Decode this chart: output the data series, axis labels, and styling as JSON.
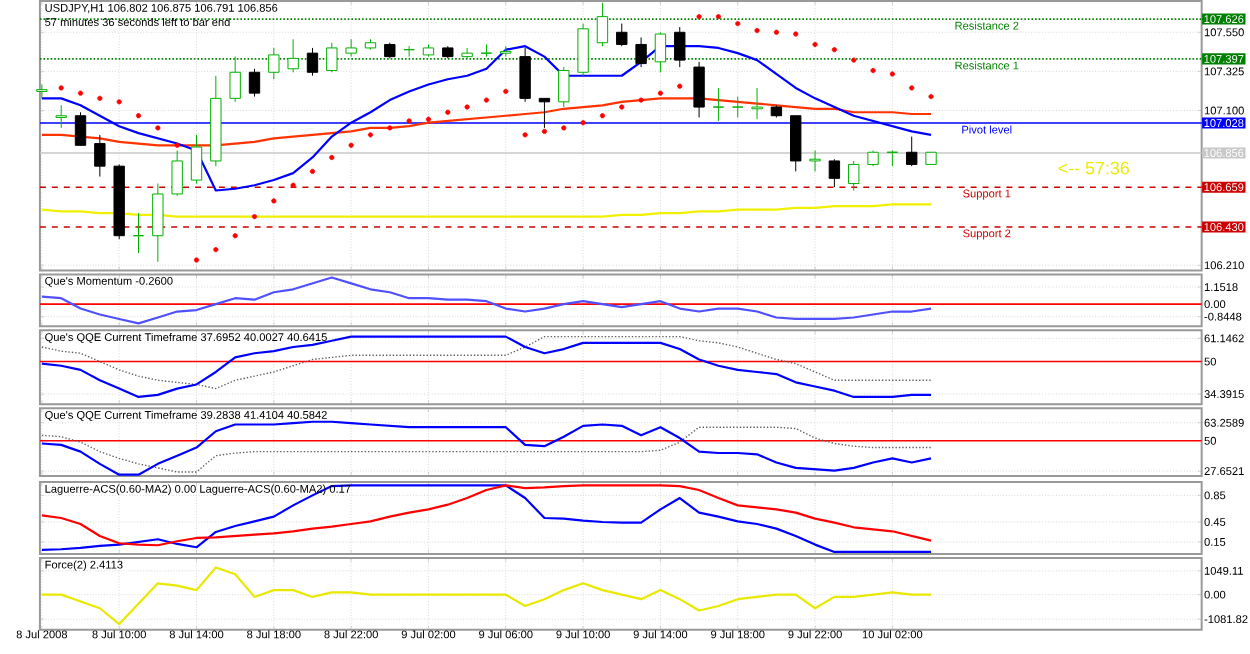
{
  "chart_data": [
    {
      "type": "candlestick",
      "title": "USDJPY,H1  106.802 106.875 106.791 106.856",
      "subtitle": "57 minutes 36 seconds left to bar end",
      "grid": true,
      "tick_labels": "y",
      "x": [
        "2008-07-08T06:00",
        "2008-07-08T07:00",
        "2008-07-08T08:00",
        "2008-07-08T09:00",
        "2008-07-08T10:00",
        "2008-07-08T11:00",
        "2008-07-08T12:00",
        "2008-07-08T13:00",
        "2008-07-08T14:00",
        "2008-07-08T15:00",
        "2008-07-08T16:00",
        "2008-07-08T17:00",
        "2008-07-08T18:00",
        "2008-07-08T19:00",
        "2008-07-08T20:00",
        "2008-07-08T21:00",
        "2008-07-08T22:00",
        "2008-07-08T23:00",
        "2008-07-09T00:00",
        "2008-07-09T01:00",
        "2008-07-09T02:00",
        "2008-07-09T03:00",
        "2008-07-09T04:00",
        "2008-07-09T05:00",
        "2008-07-09T06:00",
        "2008-07-09T07:00",
        "2008-07-09T08:00",
        "2008-07-09T09:00",
        "2008-07-09T10:00",
        "2008-07-09T11:00",
        "2008-07-09T12:00",
        "2008-07-09T13:00",
        "2008-07-09T14:00",
        "2008-07-09T15:00",
        "2008-07-09T16:00",
        "2008-07-09T17:00",
        "2008-07-09T18:00",
        "2008-07-09T19:00",
        "2008-07-09T20:00",
        "2008-07-09T21:00",
        "2008-07-09T22:00",
        "2008-07-09T23:00",
        "2008-07-10T00:00",
        "2008-07-10T01:00",
        "2008-07-10T02:00",
        "2008-07-10T03:00",
        "2008-07-10T04:00"
      ],
      "xlim": [
        "2008-07-08T05:54",
        "2008-07-10T18:00"
      ],
      "xticks": [
        {
          "value": "2008-07-08T06:00",
          "label": null
        },
        {
          "value": "2008-07-08T10:00",
          "label": null
        },
        {
          "value": "2008-07-08T14:00",
          "label": null
        },
        {
          "value": "2008-07-08T18:00",
          "label": null
        },
        {
          "value": "2008-07-08T22:00",
          "label": null
        },
        {
          "value": "2008-07-09T02:00",
          "label": null
        },
        {
          "value": "2008-07-09T06:00",
          "label": null
        },
        {
          "value": "2008-07-09T10:00",
          "label": null
        },
        {
          "value": "2008-07-09T14:00",
          "label": null
        },
        {
          "value": "2008-07-09T18:00",
          "label": null
        },
        {
          "value": "2008-07-09T22:00",
          "label": null
        },
        {
          "value": "2008-07-10T02:00",
          "label": null
        }
      ],
      "ylim": [
        106.18,
        107.73
      ],
      "yticks": [
        {
          "value": 107.55,
          "label": "107.550"
        },
        {
          "value": 107.325,
          "label": "107.325"
        },
        {
          "value": 107.1,
          "label": "107.100"
        },
        {
          "value": 106.21,
          "label": "106.210"
        }
      ],
      "ohlc": [
        [
          107.21,
          107.25,
          107.17,
          107.22
        ],
        [
          107.06,
          107.13,
          107.0,
          107.07
        ],
        [
          107.07,
          107.09,
          106.9,
          106.9
        ],
        [
          106.91,
          106.96,
          106.72,
          106.78
        ],
        [
          106.78,
          106.79,
          106.36,
          106.38
        ],
        [
          106.38,
          106.51,
          106.28,
          106.38
        ],
        [
          106.38,
          106.68,
          106.23,
          106.62
        ],
        [
          106.62,
          106.87,
          106.61,
          106.81
        ],
        [
          106.7,
          106.96,
          106.68,
          106.89
        ],
        [
          106.81,
          107.3,
          106.78,
          107.17
        ],
        [
          107.17,
          107.41,
          107.15,
          107.32
        ],
        [
          107.32,
          107.34,
          107.18,
          107.2
        ],
        [
          107.32,
          107.46,
          107.28,
          107.42
        ],
        [
          107.34,
          107.51,
          107.32,
          107.4
        ],
        [
          107.43,
          107.46,
          107.3,
          107.32
        ],
        [
          107.33,
          107.49,
          107.32,
          107.46
        ],
        [
          107.43,
          107.51,
          107.41,
          107.46
        ],
        [
          107.46,
          107.51,
          107.45,
          107.49
        ],
        [
          107.48,
          107.49,
          107.4,
          107.41
        ],
        [
          107.45,
          107.47,
          107.41,
          107.45
        ],
        [
          107.42,
          107.48,
          107.41,
          107.46
        ],
        [
          107.46,
          107.47,
          107.4,
          107.41
        ],
        [
          107.41,
          107.46,
          107.4,
          107.43
        ],
        [
          107.43,
          107.48,
          107.41,
          107.43
        ],
        [
          107.43,
          107.47,
          107.41,
          107.44
        ],
        [
          107.41,
          107.46,
          107.15,
          107.17
        ],
        [
          107.17,
          107.17,
          107.0,
          107.15
        ],
        [
          107.15,
          107.35,
          107.12,
          107.33
        ],
        [
          107.32,
          107.6,
          107.3,
          107.57
        ],
        [
          107.49,
          107.72,
          107.47,
          107.64
        ],
        [
          107.55,
          107.6,
          107.47,
          107.48
        ],
        [
          107.48,
          107.52,
          107.35,
          107.37
        ],
        [
          107.38,
          107.55,
          107.32,
          107.54
        ],
        [
          107.55,
          107.58,
          107.35,
          107.39
        ],
        [
          107.35,
          107.38,
          107.06,
          107.12
        ],
        [
          107.12,
          107.23,
          107.04,
          107.12
        ],
        [
          107.12,
          107.18,
          107.06,
          107.12
        ],
        [
          107.11,
          107.23,
          107.05,
          107.12
        ],
        [
          107.12,
          107.13,
          107.06,
          107.07
        ],
        [
          107.07,
          107.07,
          106.75,
          106.81
        ],
        [
          106.81,
          106.87,
          106.75,
          106.82
        ],
        [
          106.81,
          106.82,
          106.66,
          106.71
        ],
        [
          106.68,
          106.81,
          106.64,
          106.79
        ],
        [
          106.79,
          106.87,
          106.78,
          106.86
        ],
        [
          106.86,
          106.87,
          106.78,
          106.86
        ],
        [
          106.86,
          106.95,
          106.78,
          106.79
        ],
        [
          106.79,
          106.86,
          106.79,
          106.86
        ]
      ],
      "colors": [
        "#00b000",
        "#00b000",
        "#000000",
        "#000000",
        "#000000",
        "#00b000",
        "#00b000",
        "#00b000",
        "#00b000",
        "#00b000",
        "#00b000",
        "#000000",
        "#00b000",
        "#00b000",
        "#000000",
        "#00b000",
        "#00b000",
        "#00b000",
        "#000000",
        "#00b000",
        "#00b000",
        "#000000",
        "#00b000",
        "#00b000",
        "#00b000",
        "#000000",
        "#000000",
        "#00b000",
        "#00b000",
        "#00b000",
        "#000000",
        "#000000",
        "#00b000",
        "#000000",
        "#000000",
        "#00b000",
        "#00b000",
        "#00b000",
        "#000000",
        "#000000",
        "#00b000",
        "#000000",
        "#00b000",
        "#00b000",
        "#00b000",
        "#000000",
        "#00b000"
      ],
      "series": [
        {
          "type": "line",
          "color": "#f0f000",
          "values": [
            106.53,
            106.52,
            106.52,
            106.51,
            106.51,
            106.5,
            106.5,
            106.49,
            106.49,
            106.49,
            106.49,
            106.49,
            106.49,
            106.49,
            106.49,
            106.49,
            106.49,
            106.49,
            106.49,
            106.49,
            106.49,
            106.49,
            106.49,
            106.49,
            106.49,
            106.49,
            106.49,
            106.49,
            106.49,
            106.49,
            106.5,
            106.5,
            106.51,
            106.51,
            106.52,
            106.52,
            106.53,
            106.53,
            106.53,
            106.54,
            106.54,
            106.55,
            106.55,
            106.55,
            106.56,
            106.56,
            106.56
          ]
        },
        {
          "type": "line",
          "color": "#ff3300",
          "values": [
            106.96,
            106.96,
            106.95,
            106.94,
            106.92,
            106.91,
            106.9,
            106.9,
            106.9,
            106.9,
            106.91,
            106.92,
            106.94,
            106.95,
            106.96,
            106.97,
            106.98,
            107.0,
            107.0,
            107.01,
            107.03,
            107.04,
            107.05,
            107.06,
            107.07,
            107.08,
            107.09,
            107.11,
            107.12,
            107.13,
            107.15,
            107.16,
            107.17,
            107.17,
            107.17,
            107.16,
            107.15,
            107.14,
            107.13,
            107.12,
            107.11,
            107.11,
            107.09,
            107.09,
            107.09,
            107.08,
            107.08
          ]
        },
        {
          "type": "line",
          "color": "#0000ff",
          "values": [
            107.17,
            107.17,
            107.13,
            107.07,
            107.01,
            106.97,
            106.94,
            106.91,
            106.87,
            106.64,
            106.65,
            106.67,
            106.7,
            106.74,
            106.83,
            106.95,
            107.03,
            107.09,
            107.16,
            107.21,
            107.25,
            107.28,
            107.3,
            107.34,
            107.45,
            107.47,
            107.41,
            107.3,
            107.3,
            107.3,
            107.3,
            107.38,
            107.47,
            107.47,
            107.47,
            107.46,
            107.43,
            107.39,
            107.31,
            107.23,
            107.17,
            107.12,
            107.07,
            107.04,
            107.01,
            106.98,
            106.96
          ]
        },
        {
          "type": "scatter",
          "color": "#ff0000",
          "values": [
            null,
            107.23,
            107.2,
            107.17,
            107.15,
            107.07,
            107.0,
            106.9,
            106.24,
            106.3,
            106.38,
            106.49,
            106.58,
            106.67,
            106.75,
            106.83,
            106.9,
            106.96,
            107.0,
            107.04,
            107.05,
            107.09,
            107.12,
            107.16,
            107.21,
            106.96,
            106.98,
            107.0,
            107.03,
            107.07,
            107.12,
            107.16,
            107.2,
            107.24,
            107.64,
            107.64,
            107.6,
            107.56,
            107.55,
            107.54,
            107.48,
            107.45,
            107.39,
            107.33,
            107.31,
            107.23,
            107.18
          ]
        }
      ],
      "ref_lines": [
        {
          "axis": "y",
          "value": 107.626,
          "label": "Resistance 2",
          "color": "#008000",
          "line_style": "dotted"
        },
        {
          "axis": "y",
          "value": 107.397,
          "label": "Resistance 1",
          "color": "#008000",
          "line_style": "dotted"
        },
        {
          "axis": "y",
          "value": 107.028,
          "label": "Pivot level",
          "color": "#0000ff",
          "line_style": "solid"
        },
        {
          "axis": "y",
          "value": 106.856,
          "color": "#c8c8c8",
          "line_style": "solid"
        },
        {
          "axis": "y",
          "value": 106.659,
          "label": "Support 1",
          "color": "#cc0000",
          "line_style": "dashed"
        },
        {
          "axis": "y",
          "value": 106.43,
          "label": "Support 2",
          "color": "#cc0000",
          "line_style": "dashed"
        }
      ],
      "annotations": [
        "<-- 57:36",
        "107.626",
        "107.397",
        "107.028",
        "106.856",
        "106.659",
        "106.430"
      ]
    },
    {
      "type": "line",
      "title": "Que's Momentum  -0.2600",
      "grid": true,
      "tick_labels": "y",
      "x": [
        "2008-07-08T06:00",
        "2008-07-08T07:00",
        "2008-07-08T08:00",
        "2008-07-08T09:00",
        "2008-07-08T10:00",
        "2008-07-08T11:00",
        "2008-07-08T12:00",
        "2008-07-08T13:00",
        "2008-07-08T14:00",
        "2008-07-08T15:00",
        "2008-07-08T16:00",
        "2008-07-08T17:00",
        "2008-07-08T18:00",
        "2008-07-08T19:00",
        "2008-07-08T20:00",
        "2008-07-08T21:00",
        "2008-07-08T22:00",
        "2008-07-08T23:00",
        "2008-07-09T00:00",
        "2008-07-09T01:00",
        "2008-07-09T02:00",
        "2008-07-09T03:00",
        "2008-07-09T04:00",
        "2008-07-09T05:00",
        "2008-07-09T06:00",
        "2008-07-09T07:00",
        "2008-07-09T08:00",
        "2008-07-09T09:00",
        "2008-07-09T10:00",
        "2008-07-09T11:00",
        "2008-07-09T12:00",
        "2008-07-09T13:00",
        "2008-07-09T14:00",
        "2008-07-09T15:00",
        "2008-07-09T16:00",
        "2008-07-09T17:00",
        "2008-07-09T18:00",
        "2008-07-09T19:00",
        "2008-07-09T20:00",
        "2008-07-09T21:00",
        "2008-07-09T22:00",
        "2008-07-09T23:00",
        "2008-07-10T00:00",
        "2008-07-10T01:00",
        "2008-07-10T02:00",
        "2008-07-10T03:00",
        "2008-07-10T04:00"
      ],
      "xlim": [
        "2008-07-08T05:54",
        "2008-07-10T18:00"
      ],
      "xticks": [
        {
          "value": "2008-07-08T06:00",
          "label": null
        },
        {
          "value": "2008-07-08T10:00",
          "label": null
        },
        {
          "value": "2008-07-08T14:00",
          "label": null
        },
        {
          "value": "2008-07-08T18:00",
          "label": null
        },
        {
          "value": "2008-07-08T22:00",
          "label": null
        },
        {
          "value": "2008-07-09T02:00",
          "label": null
        },
        {
          "value": "2008-07-09T06:00",
          "label": null
        },
        {
          "value": "2008-07-09T10:00",
          "label": null
        },
        {
          "value": "2008-07-09T14:00",
          "label": null
        },
        {
          "value": "2008-07-09T18:00",
          "label": null
        },
        {
          "value": "2008-07-09T22:00",
          "label": null
        },
        {
          "value": "2008-07-10T02:00",
          "label": null
        }
      ],
      "ylim": [
        -1.5,
        2.0
      ],
      "yticks": [
        1.1518,
        {
          "value": 0,
          "label": "0.00"
        },
        -0.8448
      ],
      "ref_lines": [
        {
          "axis": "y",
          "value": 0,
          "color": "#ff0000",
          "line_style": "solid"
        }
      ],
      "series": [
        {
          "color": "#5050ff",
          "values": [
            0.5,
            0.4,
            -0.3,
            -0.7,
            -1.0,
            -1.3,
            -0.9,
            -0.5,
            -0.4,
            0,
            0.4,
            0.3,
            0.8,
            1.0,
            1.4,
            1.8,
            1.4,
            1.0,
            0.8,
            0.4,
            0.4,
            0.3,
            0.3,
            0.2,
            -0.3,
            -0.5,
            -0.3,
            0,
            0.2,
            0,
            -0.2,
            0,
            0.2,
            -0.3,
            -0.5,
            -0.3,
            -0.3,
            -0.5,
            -0.9,
            -1.0,
            -1.0,
            -1.0,
            -0.9,
            -0.7,
            -0.5,
            -0.5,
            -0.3
          ]
        }
      ]
    },
    {
      "type": "line",
      "title": "Que's QQE Current Timeframe 37.6952 40.0027 40.6415",
      "grid": true,
      "tick_labels": "y",
      "x": [
        "2008-07-08T06:00",
        "2008-07-08T07:00",
        "2008-07-08T08:00",
        "2008-07-08T09:00",
        "2008-07-08T10:00",
        "2008-07-08T11:00",
        "2008-07-08T12:00",
        "2008-07-08T13:00",
        "2008-07-08T14:00",
        "2008-07-08T15:00",
        "2008-07-08T16:00",
        "2008-07-08T17:00",
        "2008-07-08T18:00",
        "2008-07-08T19:00",
        "2008-07-08T20:00",
        "2008-07-08T21:00",
        "2008-07-08T22:00",
        "2008-07-08T23:00",
        "2008-07-09T00:00",
        "2008-07-09T01:00",
        "2008-07-09T02:00",
        "2008-07-09T03:00",
        "2008-07-09T04:00",
        "2008-07-09T05:00",
        "2008-07-09T06:00",
        "2008-07-09T07:00",
        "2008-07-09T08:00",
        "2008-07-09T09:00",
        "2008-07-09T10:00",
        "2008-07-09T11:00",
        "2008-07-09T12:00",
        "2008-07-09T13:00",
        "2008-07-09T14:00",
        "2008-07-09T15:00",
        "2008-07-09T16:00",
        "2008-07-09T17:00",
        "2008-07-09T18:00",
        "2008-07-09T19:00",
        "2008-07-09T20:00",
        "2008-07-09T21:00",
        "2008-07-09T22:00",
        "2008-07-09T23:00",
        "2008-07-10T00:00",
        "2008-07-10T01:00",
        "2008-07-10T02:00",
        "2008-07-10T03:00",
        "2008-07-10T04:00"
      ],
      "xlim": [
        "2008-07-08T05:54",
        "2008-07-10T18:00"
      ],
      "xticks": [
        {
          "value": "2008-07-08T06:00",
          "label": null
        },
        {
          "value": "2008-07-08T10:00",
          "label": null
        },
        {
          "value": "2008-07-08T14:00",
          "label": null
        },
        {
          "value": "2008-07-08T18:00",
          "label": null
        },
        {
          "value": "2008-07-08T22:00",
          "label": null
        },
        {
          "value": "2008-07-09T02:00",
          "label": null
        },
        {
          "value": "2008-07-09T06:00",
          "label": null
        },
        {
          "value": "2008-07-09T10:00",
          "label": null
        },
        {
          "value": "2008-07-09T14:00",
          "label": null
        },
        {
          "value": "2008-07-09T18:00",
          "label": null
        },
        {
          "value": "2008-07-09T22:00",
          "label": null
        },
        {
          "value": "2008-07-10T02:00",
          "label": null
        }
      ],
      "ylim": [
        29.5,
        65
      ],
      "yticks": [
        61.1462,
        50,
        34.3915
      ],
      "ref_lines": [
        {
          "axis": "y",
          "value": 50,
          "color": "#ff0000",
          "line_style": "solid"
        }
      ],
      "series": [
        {
          "color": "#606060",
          "line_style": "dotted",
          "values": [
            57,
            55,
            54,
            50,
            46,
            43,
            41,
            40,
            39,
            37,
            41,
            43,
            45,
            48,
            51,
            52,
            53,
            53,
            53,
            53,
            53,
            53,
            53,
            53,
            53,
            57,
            62,
            62,
            62,
            62,
            62,
            62,
            62,
            62,
            60,
            59,
            57,
            54,
            51,
            49,
            45,
            41,
            41,
            41,
            41,
            41,
            41
          ]
        },
        {
          "color": "#0000ff",
          "line_style": "solid",
          "values": [
            49,
            48,
            46,
            41,
            37,
            33,
            34,
            37,
            39,
            45,
            52,
            54,
            55,
            57,
            58,
            60,
            62,
            62,
            62,
            62,
            62,
            62,
            62,
            62,
            62,
            57,
            54,
            56,
            59,
            59,
            59,
            59,
            59,
            56,
            51,
            48,
            46,
            45,
            44,
            40,
            38,
            36,
            33,
            33,
            33,
            34,
            34
          ]
        }
      ]
    },
    {
      "type": "line",
      "title": "Que's QQE Current Timeframe 39.2838 41.4104 40.5842",
      "grid": true,
      "tick_labels": "y",
      "x": [
        "2008-07-08T06:00",
        "2008-07-08T07:00",
        "2008-07-08T08:00",
        "2008-07-08T09:00",
        "2008-07-08T10:00",
        "2008-07-08T11:00",
        "2008-07-08T12:00",
        "2008-07-08T13:00",
        "2008-07-08T14:00",
        "2008-07-08T15:00",
        "2008-07-08T16:00",
        "2008-07-08T17:00",
        "2008-07-08T18:00",
        "2008-07-08T19:00",
        "2008-07-08T20:00",
        "2008-07-08T21:00",
        "2008-07-08T22:00",
        "2008-07-08T23:00",
        "2008-07-09T00:00",
        "2008-07-09T01:00",
        "2008-07-09T02:00",
        "2008-07-09T03:00",
        "2008-07-09T04:00",
        "2008-07-09T05:00",
        "2008-07-09T06:00",
        "2008-07-09T07:00",
        "2008-07-09T08:00",
        "2008-07-09T09:00",
        "2008-07-09T10:00",
        "2008-07-09T11:00",
        "2008-07-09T12:00",
        "2008-07-09T13:00",
        "2008-07-09T14:00",
        "2008-07-09T15:00",
        "2008-07-09T16:00",
        "2008-07-09T17:00",
        "2008-07-09T18:00",
        "2008-07-09T19:00",
        "2008-07-09T20:00",
        "2008-07-09T21:00",
        "2008-07-09T22:00",
        "2008-07-09T23:00",
        "2008-07-10T00:00",
        "2008-07-10T01:00",
        "2008-07-10T02:00",
        "2008-07-10T03:00",
        "2008-07-10T04:00"
      ],
      "xlim": [
        "2008-07-08T05:54",
        "2008-07-10T18:00"
      ],
      "xticks": [
        {
          "value": "2008-07-08T06:00",
          "label": null
        },
        {
          "value": "2008-07-08T10:00",
          "label": null
        },
        {
          "value": "2008-07-08T14:00",
          "label": null
        },
        {
          "value": "2008-07-08T18:00",
          "label": null
        },
        {
          "value": "2008-07-08T22:00",
          "label": null
        },
        {
          "value": "2008-07-09T02:00",
          "label": null
        },
        {
          "value": "2008-07-09T06:00",
          "label": null
        },
        {
          "value": "2008-07-09T10:00",
          "label": null
        },
        {
          "value": "2008-07-09T14:00",
          "label": null
        },
        {
          "value": "2008-07-09T18:00",
          "label": null
        },
        {
          "value": "2008-07-09T22:00",
          "label": null
        },
        {
          "value": "2008-07-10T02:00",
          "label": null
        }
      ],
      "ylim": [
        24,
        74
      ],
      "yticks": [
        63.2589,
        50,
        27.6521
      ],
      "ref_lines": [
        {
          "axis": "y",
          "value": 50,
          "color": "#ff0000",
          "line_style": "solid"
        }
      ],
      "series": [
        {
          "color": "#606060",
          "line_style": "dotted",
          "values": [
            54,
            53,
            49,
            42,
            37,
            33,
            30,
            27,
            27,
            39,
            41,
            42,
            42,
            42,
            42,
            42,
            42,
            42,
            42,
            42,
            42,
            42,
            42,
            42,
            42,
            42,
            42,
            42,
            42,
            42,
            42,
            42,
            43,
            49,
            60,
            60,
            60,
            60,
            60,
            59,
            52,
            48,
            46,
            45,
            45,
            45,
            45
          ]
        },
        {
          "color": "#0000ff",
          "line_style": "solid",
          "values": [
            48,
            47,
            42,
            33,
            25,
            25,
            33,
            39,
            45,
            57,
            62,
            62,
            62,
            63,
            64,
            64,
            63,
            62,
            61,
            60,
            60,
            60,
            60,
            60,
            60,
            47,
            46,
            53,
            61,
            62,
            61,
            54,
            60,
            52,
            42,
            41,
            41,
            40,
            34,
            30,
            29,
            28,
            30,
            34,
            37,
            34,
            37
          ]
        }
      ]
    },
    {
      "type": "line",
      "title": "Laguerre-ACS(0.60-MA2) 0.00  Laguerre-ACS(0.60-MA2) 0.17",
      "grid": true,
      "tick_labels": "y",
      "x": [
        "2008-07-08T06:00",
        "2008-07-08T07:00",
        "2008-07-08T08:00",
        "2008-07-08T09:00",
        "2008-07-08T10:00",
        "2008-07-08T11:00",
        "2008-07-08T12:00",
        "2008-07-08T13:00",
        "2008-07-08T14:00",
        "2008-07-08T15:00",
        "2008-07-08T16:00",
        "2008-07-08T17:00",
        "2008-07-08T18:00",
        "2008-07-08T19:00",
        "2008-07-08T20:00",
        "2008-07-08T21:00",
        "2008-07-08T22:00",
        "2008-07-08T23:00",
        "2008-07-09T00:00",
        "2008-07-09T01:00",
        "2008-07-09T02:00",
        "2008-07-09T03:00",
        "2008-07-09T04:00",
        "2008-07-09T05:00",
        "2008-07-09T06:00",
        "2008-07-09T07:00",
        "2008-07-09T08:00",
        "2008-07-09T09:00",
        "2008-07-09T10:00",
        "2008-07-09T11:00",
        "2008-07-09T12:00",
        "2008-07-09T13:00",
        "2008-07-09T14:00",
        "2008-07-09T15:00",
        "2008-07-09T16:00",
        "2008-07-09T17:00",
        "2008-07-09T18:00",
        "2008-07-09T19:00",
        "2008-07-09T20:00",
        "2008-07-09T21:00",
        "2008-07-09T22:00",
        "2008-07-09T23:00",
        "2008-07-10T00:00",
        "2008-07-10T01:00",
        "2008-07-10T02:00",
        "2008-07-10T03:00",
        "2008-07-10T04:00"
      ],
      "xlim": [
        "2008-07-08T05:54",
        "2008-07-10T18:00"
      ],
      "xticks": [
        {
          "value": "2008-07-08T06:00",
          "label": null
        },
        {
          "value": "2008-07-08T10:00",
          "label": null
        },
        {
          "value": "2008-07-08T14:00",
          "label": null
        },
        {
          "value": "2008-07-08T18:00",
          "label": null
        },
        {
          "value": "2008-07-08T22:00",
          "label": null
        },
        {
          "value": "2008-07-09T02:00",
          "label": null
        },
        {
          "value": "2008-07-09T06:00",
          "label": null
        },
        {
          "value": "2008-07-09T10:00",
          "label": null
        },
        {
          "value": "2008-07-09T14:00",
          "label": null
        },
        {
          "value": "2008-07-09T18:00",
          "label": null
        },
        {
          "value": "2008-07-09T22:00",
          "label": null
        },
        {
          "value": "2008-07-10T02:00",
          "label": null
        }
      ],
      "ylim": [
        -0.03,
        1.05
      ],
      "yticks": [
        0.85,
        0.45,
        0.15
      ],
      "series": [
        {
          "color": "#0000ff",
          "values": [
            0.03,
            0.04,
            0.06,
            0.09,
            0.11,
            0.15,
            0.19,
            0.12,
            0.07,
            0.3,
            0.39,
            0.46,
            0.53,
            0.7,
            0.85,
            0.99,
            1.0,
            1.0,
            1.0,
            1.0,
            1.0,
            1.0,
            1.0,
            1.0,
            1.0,
            0.81,
            0.51,
            0.5,
            0.47,
            0.45,
            0.44,
            0.44,
            0.64,
            0.81,
            0.59,
            0.53,
            0.46,
            0.42,
            0.35,
            0.24,
            0.11,
            0,
            0,
            0,
            0,
            0,
            0
          ]
        },
        {
          "color": "#ff0000",
          "values": [
            0.55,
            0.51,
            0.42,
            0.24,
            0.13,
            0.11,
            0.1,
            0.16,
            0.21,
            0.22,
            0.24,
            0.26,
            0.28,
            0.31,
            0.35,
            0.38,
            0.42,
            0.46,
            0.53,
            0.59,
            0.64,
            0.71,
            0.81,
            0.93,
            1.0,
            0.96,
            0.97,
            0.99,
            1.0,
            1.0,
            1.0,
            1.0,
            1.0,
            0.99,
            0.93,
            0.81,
            0.7,
            0.67,
            0.64,
            0.59,
            0.5,
            0.44,
            0.37,
            0.34,
            0.31,
            0.24,
            0.17
          ]
        }
      ]
    },
    {
      "type": "line",
      "title": "Force(2) 2.4113",
      "grid": true,
      "x": [
        "2008-07-08T06:00",
        "2008-07-08T07:00",
        "2008-07-08T08:00",
        "2008-07-08T09:00",
        "2008-07-08T10:00",
        "2008-07-08T11:00",
        "2008-07-08T12:00",
        "2008-07-08T13:00",
        "2008-07-08T14:00",
        "2008-07-08T15:00",
        "2008-07-08T16:00",
        "2008-07-08T17:00",
        "2008-07-08T18:00",
        "2008-07-08T19:00",
        "2008-07-08T20:00",
        "2008-07-08T21:00",
        "2008-07-08T22:00",
        "2008-07-08T23:00",
        "2008-07-09T00:00",
        "2008-07-09T01:00",
        "2008-07-09T02:00",
        "2008-07-09T03:00",
        "2008-07-09T04:00",
        "2008-07-09T05:00",
        "2008-07-09T06:00",
        "2008-07-09T07:00",
        "2008-07-09T08:00",
        "2008-07-09T09:00",
        "2008-07-09T10:00",
        "2008-07-09T11:00",
        "2008-07-09T12:00",
        "2008-07-09T13:00",
        "2008-07-09T14:00",
        "2008-07-09T15:00",
        "2008-07-09T16:00",
        "2008-07-09T17:00",
        "2008-07-09T18:00",
        "2008-07-09T19:00",
        "2008-07-09T20:00",
        "2008-07-09T21:00",
        "2008-07-09T22:00",
        "2008-07-09T23:00",
        "2008-07-10T00:00",
        "2008-07-10T01:00",
        "2008-07-10T02:00",
        "2008-07-10T03:00",
        "2008-07-10T04:00"
      ],
      "xlim": [
        "2008-07-08T05:54",
        "2008-07-10T18:00"
      ],
      "xticks": [
        {
          "value": "2008-07-08T06:00",
          "label": "8 Jul 2008"
        },
        {
          "value": "2008-07-08T10:00",
          "label": "8 Jul 10:00"
        },
        {
          "value": "2008-07-08T14:00",
          "label": "8 Jul 14:00"
        },
        {
          "value": "2008-07-08T18:00",
          "label": "8 Jul 18:00"
        },
        {
          "value": "2008-07-08T22:00",
          "label": "8 Jul 22:00"
        },
        {
          "value": "2008-07-09T02:00",
          "label": "9 Jul 02:00"
        },
        {
          "value": "2008-07-09T06:00",
          "label": "9 Jul 06:00"
        },
        {
          "value": "2008-07-09T10:00",
          "label": "9 Jul 10:00"
        },
        {
          "value": "2008-07-09T14:00",
          "label": "9 Jul 14:00"
        },
        {
          "value": "2008-07-09T18:00",
          "label": "9 Jul 18:00"
        },
        {
          "value": "2008-07-09T22:00",
          "label": "9 Jul 22:00"
        },
        {
          "value": "2008-07-10T02:00",
          "label": "10 Jul 02:00"
        }
      ],
      "ylim": [
        -1550,
        1620
      ],
      "yticks": [
        1049.11,
        {
          "value": 0,
          "label": "0.00"
        },
        -1081.82
      ],
      "series": [
        {
          "color": "#e8e800",
          "values": [
            0,
            0,
            -300,
            -600,
            -1300,
            -400,
            500,
            400,
            200,
            1200,
            900,
            -100,
            200,
            200,
            -100,
            100,
            100,
            0,
            0,
            0,
            0,
            0,
            0,
            0,
            0,
            -500,
            -200,
            200,
            500,
            200,
            0,
            -200,
            200,
            -200,
            -700,
            -500,
            -200,
            -100,
            0,
            0,
            -600,
            -100,
            -100,
            0,
            100,
            0,
            0
          ]
        }
      ]
    }
  ]
}
